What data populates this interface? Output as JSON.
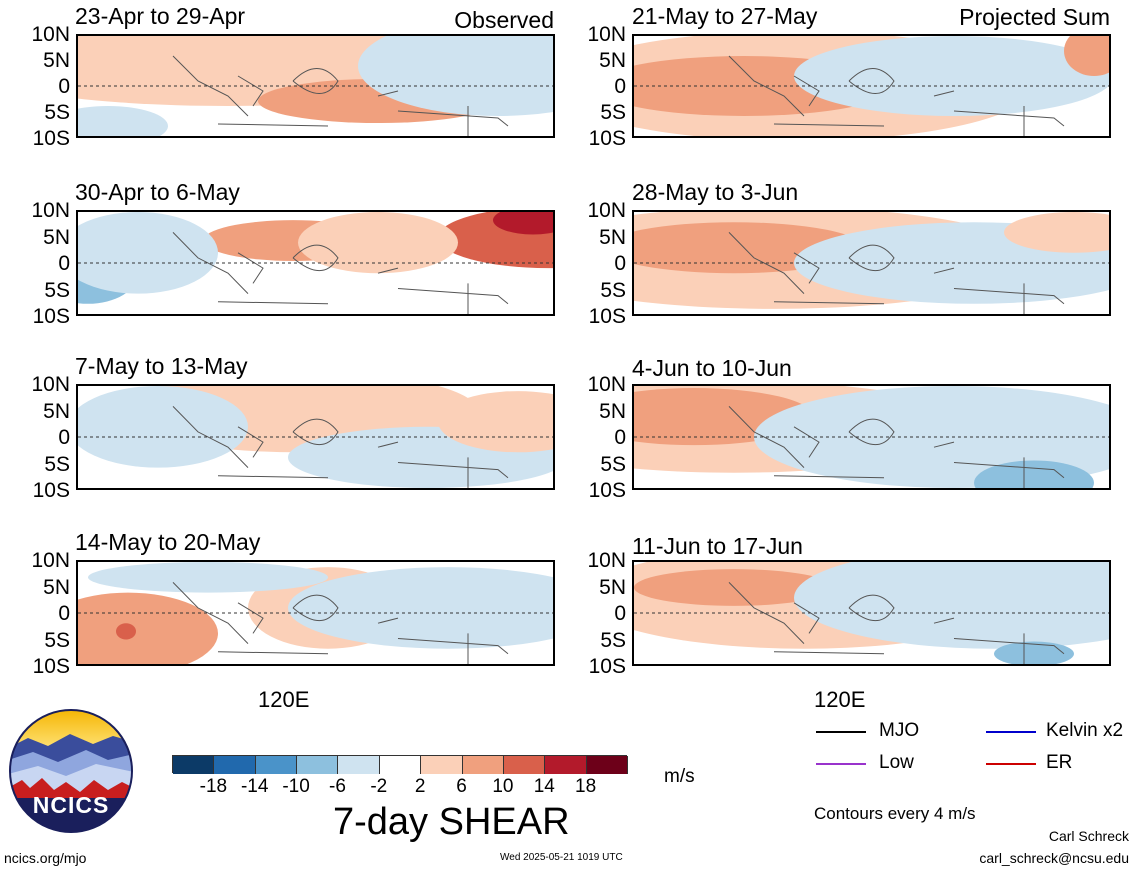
{
  "columns": {
    "left_tag": "Observed",
    "right_tag": "Projected Sum",
    "x_label": "120E"
  },
  "y_labels": [
    "10N",
    "5N",
    "0",
    "5S",
    "10S"
  ],
  "panels": {
    "left": [
      {
        "title": "23-Apr to 29-Apr"
      },
      {
        "title": "30-Apr to 6-May"
      },
      {
        "title": "7-May to 13-May"
      },
      {
        "title": "14-May to 20-May"
      }
    ],
    "right": [
      {
        "title": "21-May to 27-May"
      },
      {
        "title": "28-May to 3-Jun"
      },
      {
        "title": "4-Jun to 10-Jun"
      },
      {
        "title": "11-Jun to 17-Jun"
      }
    ]
  },
  "colorbar": {
    "ticks": [
      "-18",
      "-14",
      "-10",
      "-6",
      "-2",
      "2",
      "6",
      "10",
      "14",
      "18"
    ],
    "colors": [
      "#0c3a67",
      "#2169ad",
      "#4a93c9",
      "#8dc0de",
      "#cfe3f0",
      "#ffffff",
      "#fbd0b8",
      "#f0a07e",
      "#d9604b",
      "#b31a2b",
      "#6d0019"
    ],
    "unit": "m/s",
    "title": "7-day SHEAR"
  },
  "legend": {
    "items": [
      {
        "label": "MJO",
        "color": "#000000",
        "style": "solid"
      },
      {
        "label": "Kelvin x2",
        "color": "#0000cc",
        "style": "solid"
      },
      {
        "label": "Low",
        "color": "#9933cc",
        "style": "solid"
      },
      {
        "label": "ER",
        "color": "#cc0000",
        "style": "solid"
      }
    ],
    "note": "Contours every 4 m/s"
  },
  "logo": {
    "text": "NCICS"
  },
  "footer": {
    "site": "ncics.org/mjo",
    "timestamp": "Wed 2025-05-21 1019 UTC",
    "author": "Carl Schreck",
    "email": "carl_schreck@ncsu.edu"
  }
}
